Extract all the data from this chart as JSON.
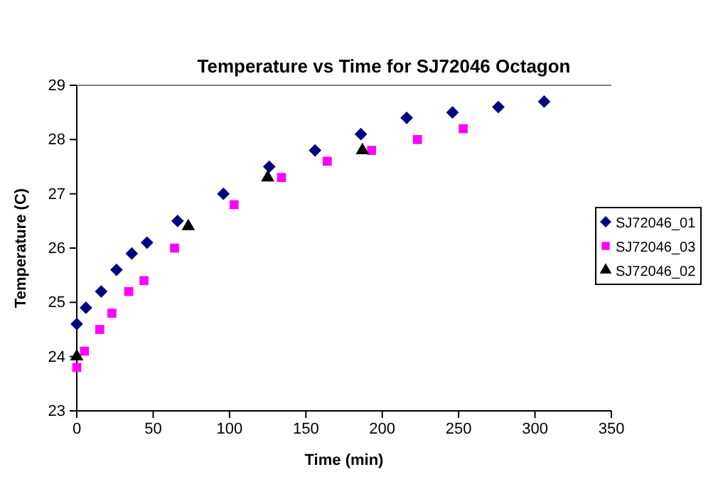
{
  "chart_data": {
    "type": "scatter",
    "title": "Temperature vs Time for SJ72046 Octagon",
    "xlabel": "Time (min)",
    "ylabel": "Temperature (C)",
    "xlim": [
      0,
      350
    ],
    "xticks": [
      0,
      50,
      100,
      150,
      200,
      250,
      300,
      350
    ],
    "ylim": [
      23,
      29
    ],
    "yticks": [
      23,
      24,
      25,
      26,
      27,
      28,
      29
    ],
    "grid": false,
    "legend": "right",
    "series": [
      {
        "name": "SJ72046_01",
        "color": "#000080",
        "marker": "diamond",
        "x": [
          0,
          6,
          16,
          26,
          36,
          46,
          66,
          96,
          126,
          156,
          186,
          216,
          246,
          276,
          306
        ],
        "values": [
          24.6,
          24.9,
          25.2,
          25.6,
          25.9,
          26.1,
          26.5,
          27.0,
          27.5,
          27.8,
          28.1,
          28.4,
          28.5,
          28.6,
          28.7
        ]
      },
      {
        "name": "SJ72046_03",
        "color": "#ff00ff",
        "marker": "square",
        "x": [
          0,
          5,
          15,
          23,
          34,
          44,
          64,
          103,
          134,
          164,
          193,
          223,
          253
        ],
        "values": [
          23.8,
          24.1,
          24.5,
          24.8,
          25.2,
          25.4,
          26.0,
          26.8,
          27.3,
          27.6,
          27.8,
          28.0,
          28.2
        ]
      },
      {
        "name": "SJ72046_02",
        "color": "#000000",
        "marker": "triangle",
        "x": [
          0,
          73,
          125,
          187
        ],
        "values": [
          24.0,
          26.4,
          27.3,
          27.8
        ]
      }
    ]
  }
}
